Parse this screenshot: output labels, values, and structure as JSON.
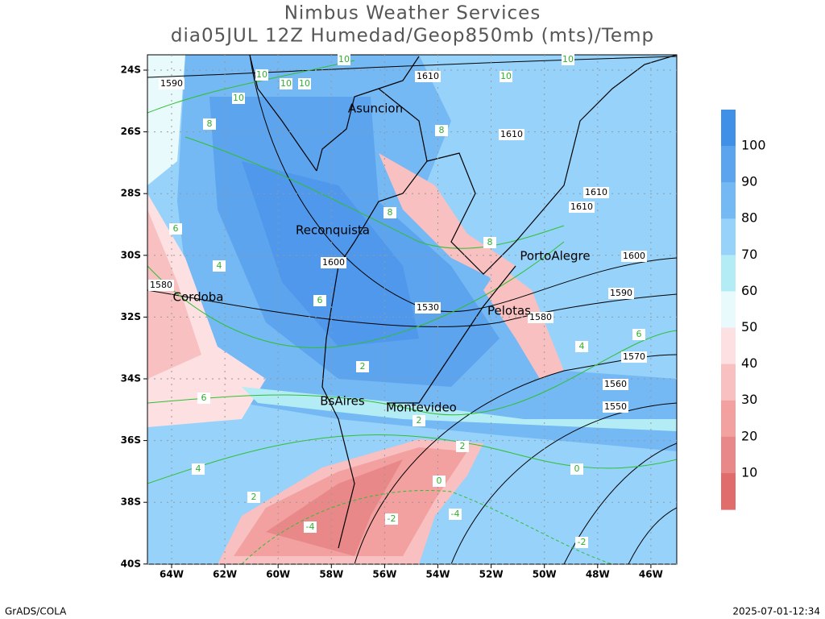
{
  "header": {
    "title": "Nimbus Weather Services",
    "subtitle": "dia05JUL 12Z Humedad/Geop850mb (mts)/Temp"
  },
  "map": {
    "lat_labels": [
      "24S",
      "26S",
      "28S",
      "30S",
      "32S",
      "34S",
      "36S",
      "38S",
      "40S"
    ],
    "lon_labels": [
      "64W",
      "62W",
      "60W",
      "58W",
      "56W",
      "54W",
      "52W",
      "50W",
      "48W",
      "46W"
    ],
    "cities": [
      "Asuncion",
      "Reconquista",
      "Cordoba",
      "PortoAlegre",
      "Pelotas",
      "BsAires",
      "Montevideo"
    ],
    "isobar_labels": [
      "1610",
      "1590",
      "1610",
      "1610",
      "1610",
      "1600",
      "1600",
      "1590",
      "1580",
      "1570",
      "1560",
      "1550",
      "1580",
      "1530"
    ],
    "temp_labels": [
      "10",
      "10",
      "10",
      "10",
      "10",
      "10",
      "10",
      "8",
      "8",
      "8",
      "8",
      "6",
      "6",
      "6",
      "6",
      "4",
      "4",
      "4",
      "2",
      "2",
      "2",
      "2",
      "0",
      "0",
      "-2",
      "-2",
      "-4",
      "-4"
    ]
  },
  "colorbar": {
    "ticks": [
      100,
      90,
      80,
      70,
      60,
      50,
      40,
      30,
      20,
      10
    ]
  },
  "footer": {
    "left": "GrADS/COLA",
    "right": "2025-07-01-12:34"
  }
}
